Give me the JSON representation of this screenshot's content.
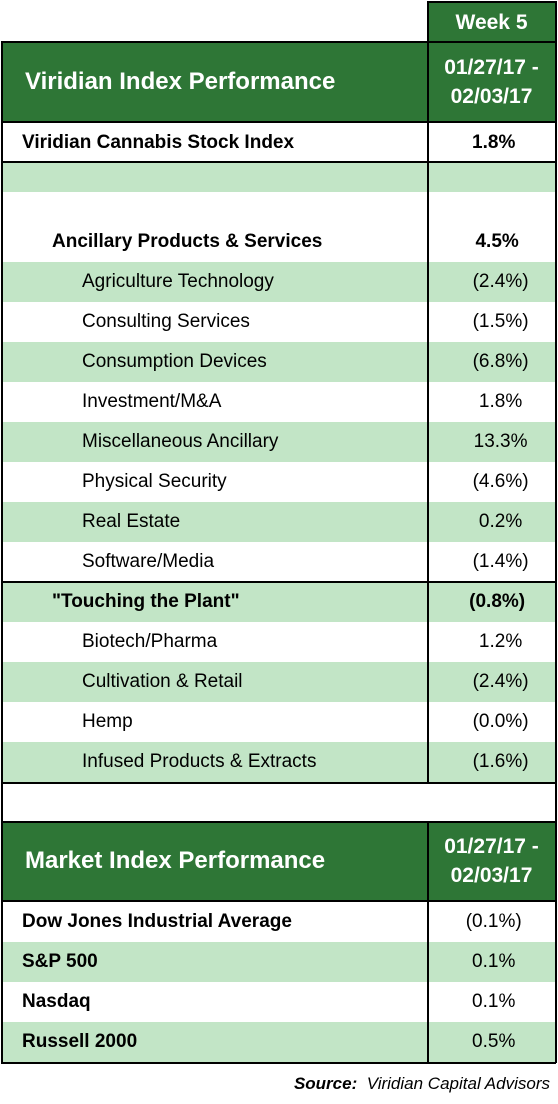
{
  "header": {
    "week_label": "Week 5",
    "title": "Viridian Index Performance",
    "date_range_line1": "01/27/17 -",
    "date_range_line2": "02/03/17"
  },
  "viridian_rows": [
    {
      "label": "Viridian Cannabis Stock Index",
      "value": "1.8%"
    },
    {
      "label": "",
      "value": ""
    },
    {
      "label": "",
      "value": ""
    },
    {
      "label": "Ancillary Products & Services",
      "value": "4.5%"
    },
    {
      "label": "Agriculture Technology",
      "value": "(2.4%)"
    },
    {
      "label": "Consulting Services",
      "value": "(1.5%)"
    },
    {
      "label": "Consumption Devices",
      "value": "(6.8%)"
    },
    {
      "label": "Investment/M&A",
      "value": "1.8%"
    },
    {
      "label": "Miscellaneous Ancillary",
      "value": "13.3%"
    },
    {
      "label": "Physical Security",
      "value": "(4.6%)"
    },
    {
      "label": "Real Estate",
      "value": "0.2%"
    },
    {
      "label": "Software/Media",
      "value": "(1.4%)"
    },
    {
      "label": "\"Touching the Plant\"",
      "value": "(0.8%)"
    },
    {
      "label": "Biotech/Pharma",
      "value": "1.2%"
    },
    {
      "label": "Cultivation & Retail",
      "value": "(2.4%)"
    },
    {
      "label": "Hemp",
      "value": "(0.0%)"
    },
    {
      "label": "Infused Products & Extracts",
      "value": "(1.6%)"
    }
  ],
  "market_header": {
    "title": "Market Index Performance",
    "date_range_line1": "01/27/17 -",
    "date_range_line2": "02/03/17"
  },
  "market_rows": [
    {
      "label": "Dow Jones Industrial Average",
      "value": "(0.1%)"
    },
    {
      "label": "S&P 500",
      "value": "0.1%"
    },
    {
      "label": "Nasdaq",
      "value": "0.1%"
    },
    {
      "label": "Russell 2000",
      "value": "0.5%"
    }
  ],
  "source": {
    "label": "Source:",
    "text": "Viridian Capital Advisors"
  },
  "colors": {
    "header_green": "#2e7636",
    "row_green": "#c2e5c6"
  }
}
